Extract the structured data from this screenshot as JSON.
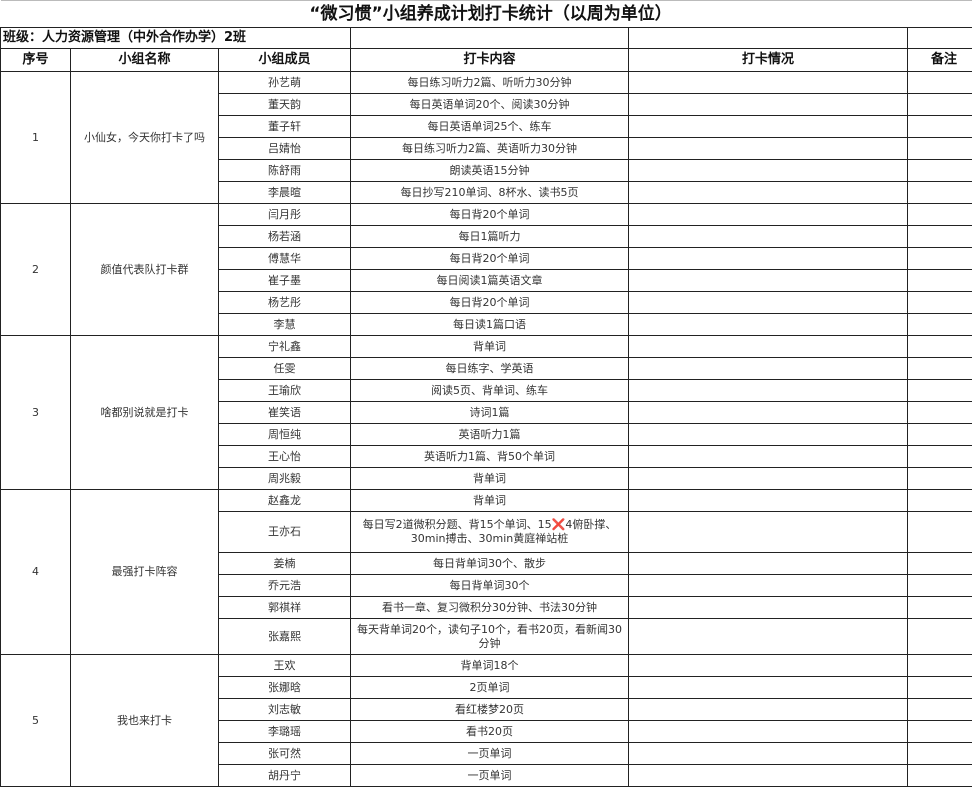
{
  "title": "“微习惯”小组养成计划打卡统计（以周为单位）",
  "class_label": "班级：人力资源管理（中外合作办学）2班",
  "headers": {
    "index": "序号",
    "group": "小组名称",
    "member": "小组成员",
    "content": "打卡内容",
    "status": "打卡情况",
    "note": "备注"
  },
  "groups": [
    {
      "index": "1",
      "name": "小仙女，今天你打卡了吗",
      "members": [
        {
          "name": "孙艺萌",
          "content": "每日练习听力2篇、听听力30分钟"
        },
        {
          "name": "董天韵",
          "content": "每日英语单词20个、阅读30分钟"
        },
        {
          "name": "董子轩",
          "content": "每日英语单词25个、练车"
        },
        {
          "name": "吕婧怡",
          "content": "每日练习听力2篇、英语听力30分钟"
        },
        {
          "name": "陈舒雨",
          "content": "朗读英语15分钟"
        },
        {
          "name": "李晨暄",
          "content": "每日抄写210单词、8杯水、读书5页"
        }
      ]
    },
    {
      "index": "2",
      "name": "颜值代表队打卡群",
      "members": [
        {
          "name": "闫月彤",
          "content": "每日背20个单词"
        },
        {
          "name": "杨若涵",
          "content": "每日1篇听力"
        },
        {
          "name": "傅慧华",
          "content": "每日背20个单词"
        },
        {
          "name": "崔子墨",
          "content": "每日阅读1篇英语文章"
        },
        {
          "name": "杨艺彤",
          "content": "每日背20个单词"
        },
        {
          "name": "李慧",
          "content": "每日读1篇口语"
        }
      ]
    },
    {
      "index": "3",
      "name": "啥都别说就是打卡",
      "members": [
        {
          "name": "宁礼鑫",
          "content": "背单词"
        },
        {
          "name": "任雯",
          "content": "每日练字、学英语"
        },
        {
          "name": "王瑜欣",
          "content": "阅读5页、背单词、练车"
        },
        {
          "name": "崔笑语",
          "content": "诗词1篇"
        },
        {
          "name": "周恒纯",
          "content": "英语听力1篇"
        },
        {
          "name": "王心怡",
          "content": "英语听力1篇、背50个单词"
        },
        {
          "name": "周兆毅",
          "content": "背单词"
        }
      ]
    },
    {
      "index": "4",
      "name": "最强打卡阵容",
      "members": [
        {
          "name": "赵鑫龙",
          "content": "背单词"
        },
        {
          "name": "王亦石",
          "content": "每日写2道微积分题、背15个单词、15",
          "content_mark": "❌",
          "content_rest": "4俯卧撑、30min搏击、30min黄庭禅站桩",
          "size": "tall"
        },
        {
          "name": "姜楠",
          "content": "每日背单词30个、散步"
        },
        {
          "name": "乔元浩",
          "content": "每日背单词30个"
        },
        {
          "name": "郭祺祥",
          "content": "看书一章、复习微积分30分钟、书法30分钟"
        },
        {
          "name": "张嘉熙",
          "content": "每天背单词20个，读句子10个，看书20页，看新闻30分钟",
          "size": "mid"
        }
      ]
    },
    {
      "index": "5",
      "name": "我也来打卡",
      "members": [
        {
          "name": "王欢",
          "content": "背单词18个"
        },
        {
          "name": "张娜晗",
          "content": "2页单词"
        },
        {
          "name": "刘志敏",
          "content": "看红楼梦20页"
        },
        {
          "name": "李璐瑶",
          "content": "看书20页"
        },
        {
          "name": "张可然",
          "content": "一页单词"
        },
        {
          "name": "胡丹宁",
          "content": "一页单词"
        }
      ]
    }
  ]
}
